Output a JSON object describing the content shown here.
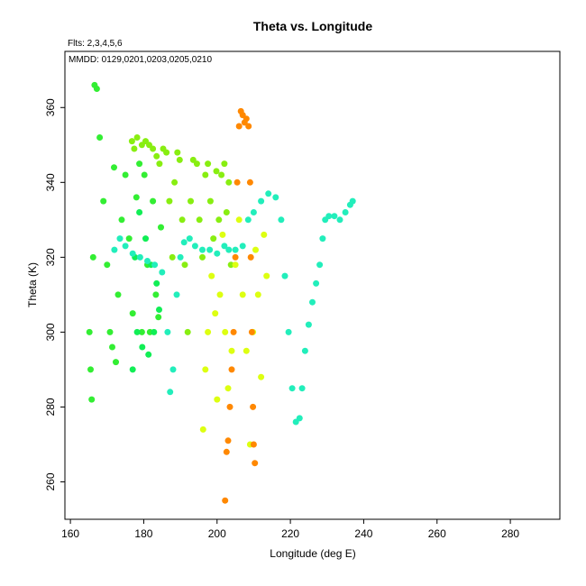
{
  "chart_data": {
    "type": "scatter",
    "title": "Theta vs. Longitude",
    "annotations": [
      "Flts: 2,3,4,5,6",
      "MMDD: 0129,0201,0203,0205,0210"
    ],
    "xlabel": "Longitude (deg E)",
    "ylabel": "Theta (K)",
    "xlim": [
      158.5,
      293.5
    ],
    "ylim": [
      250,
      375
    ],
    "xticks": [
      160,
      180,
      200,
      220,
      240,
      260,
      280
    ],
    "yticks": [
      260,
      280,
      300,
      320,
      340,
      360
    ],
    "grid": false,
    "legend": "none",
    "series": [
      {
        "color": "#33ee33",
        "points": [
          [
            165.2,
            300
          ],
          [
            165.5,
            290
          ],
          [
            165.8,
            282
          ],
          [
            166.2,
            320
          ],
          [
            166.6,
            366
          ],
          [
            167.2,
            365
          ],
          [
            168,
            352
          ],
          [
            169,
            335
          ],
          [
            170,
            318
          ],
          [
            170.8,
            300
          ],
          [
            171.4,
            296
          ],
          [
            171.9,
            344
          ],
          [
            172.4,
            292
          ],
          [
            173,
            310
          ],
          [
            174,
            330
          ],
          [
            175,
            342
          ],
          [
            176,
            325
          ],
          [
            177,
            305
          ],
          [
            178,
            336
          ],
          [
            178.8,
            345
          ],
          [
            179.5,
            300
          ],
          [
            180.2,
            342
          ],
          [
            181,
            318
          ],
          [
            181.7,
            300
          ],
          [
            182.5,
            335
          ],
          [
            183.3,
            310
          ],
          [
            184,
            304
          ],
          [
            184.7,
            328
          ]
        ]
      },
      {
        "color": "#11ee55",
        "points": [
          [
            177,
            290
          ],
          [
            177.6,
            320
          ],
          [
            178.2,
            300
          ],
          [
            178.8,
            332
          ],
          [
            179.6,
            296
          ],
          [
            180.5,
            325
          ],
          [
            181.3,
            294
          ],
          [
            182,
            318
          ],
          [
            182.8,
            300
          ],
          [
            183.5,
            313
          ],
          [
            184.2,
            306
          ]
        ]
      },
      {
        "color": "#88ee11",
        "points": [
          [
            176.8,
            351
          ],
          [
            177.4,
            349
          ],
          [
            178.2,
            352
          ],
          [
            179.5,
            350
          ],
          [
            180.5,
            351
          ],
          [
            181.5,
            350
          ],
          [
            182.5,
            349
          ],
          [
            183.5,
            347
          ],
          [
            184.3,
            345
          ],
          [
            185.3,
            349
          ],
          [
            186.2,
            348
          ],
          [
            187,
            335
          ],
          [
            187.8,
            320
          ],
          [
            188.4,
            340
          ],
          [
            189.2,
            348
          ],
          [
            189.8,
            346
          ],
          [
            190.5,
            330
          ],
          [
            191.2,
            318
          ],
          [
            192,
            300
          ],
          [
            192.8,
            335
          ],
          [
            193.5,
            346
          ],
          [
            194.5,
            345
          ],
          [
            195.2,
            330
          ],
          [
            196,
            320
          ],
          [
            196.8,
            342
          ],
          [
            197.5,
            345
          ],
          [
            198.2,
            335
          ],
          [
            199,
            325
          ],
          [
            199.8,
            343
          ],
          [
            200.5,
            330
          ],
          [
            201.2,
            342
          ],
          [
            202,
            345
          ],
          [
            202.6,
            332
          ],
          [
            203.2,
            340
          ],
          [
            203.8,
            318
          ]
        ]
      },
      {
        "color": "#ddff11",
        "points": [
          [
            196.2,
            274
          ],
          [
            196.8,
            290
          ],
          [
            197.5,
            300
          ],
          [
            198.5,
            315
          ],
          [
            199.5,
            305
          ],
          [
            200,
            282
          ],
          [
            200.8,
            310
          ],
          [
            201.5,
            326
          ],
          [
            202.2,
            300
          ],
          [
            203,
            285
          ],
          [
            204,
            295
          ],
          [
            205,
            318
          ],
          [
            206,
            330
          ],
          [
            207,
            310
          ],
          [
            208,
            295
          ],
          [
            209,
            270
          ],
          [
            209.8,
            300
          ],
          [
            210.5,
            322
          ],
          [
            211.2,
            310
          ],
          [
            212,
            288
          ],
          [
            212.8,
            326
          ],
          [
            213.5,
            315
          ]
        ]
      },
      {
        "color": "#22eebb",
        "points": [
          [
            172,
            322
          ],
          [
            173.5,
            325
          ],
          [
            175,
            323
          ],
          [
            177,
            321
          ],
          [
            179,
            320
          ],
          [
            181,
            319
          ],
          [
            183,
            318
          ],
          [
            185,
            316
          ],
          [
            186.5,
            300
          ],
          [
            187.2,
            284
          ],
          [
            188,
            290
          ],
          [
            189,
            310
          ],
          [
            190,
            320
          ],
          [
            191,
            324
          ],
          [
            192.5,
            325
          ],
          [
            194,
            323
          ],
          [
            196,
            322
          ],
          [
            198,
            322
          ],
          [
            200,
            321
          ],
          [
            202,
            323
          ],
          [
            203.2,
            322
          ],
          [
            205,
            322
          ],
          [
            207,
            323
          ],
          [
            208.5,
            330
          ],
          [
            210,
            332
          ],
          [
            212,
            335
          ],
          [
            214,
            337
          ],
          [
            216,
            336
          ],
          [
            217.5,
            330
          ],
          [
            218.5,
            315
          ],
          [
            219.5,
            300
          ],
          [
            220.5,
            285
          ],
          [
            221.5,
            276
          ],
          [
            222.5,
            277
          ],
          [
            223.2,
            285
          ],
          [
            224,
            295
          ],
          [
            225,
            302
          ],
          [
            226,
            308
          ],
          [
            227,
            313
          ],
          [
            228,
            318
          ],
          [
            228.8,
            325
          ],
          [
            229.5,
            330
          ],
          [
            230.5,
            331
          ],
          [
            232,
            331
          ],
          [
            233.5,
            330
          ],
          [
            235,
            332
          ],
          [
            236.3,
            334
          ],
          [
            237,
            335
          ]
        ]
      },
      {
        "color": "#ff8800",
        "points": [
          [
            202.2,
            255
          ],
          [
            202.6,
            268
          ],
          [
            203,
            271
          ],
          [
            203.5,
            280
          ],
          [
            204,
            290
          ],
          [
            204.5,
            300
          ],
          [
            205,
            320
          ],
          [
            205.5,
            340
          ],
          [
            206,
            355
          ],
          [
            206.5,
            359
          ],
          [
            207,
            358
          ],
          [
            207.5,
            356
          ],
          [
            208,
            357
          ],
          [
            208.6,
            355
          ],
          [
            209,
            340
          ],
          [
            209.2,
            320
          ],
          [
            209.5,
            300
          ],
          [
            209.8,
            280
          ],
          [
            210,
            270
          ],
          [
            210.3,
            265
          ]
        ]
      }
    ]
  }
}
